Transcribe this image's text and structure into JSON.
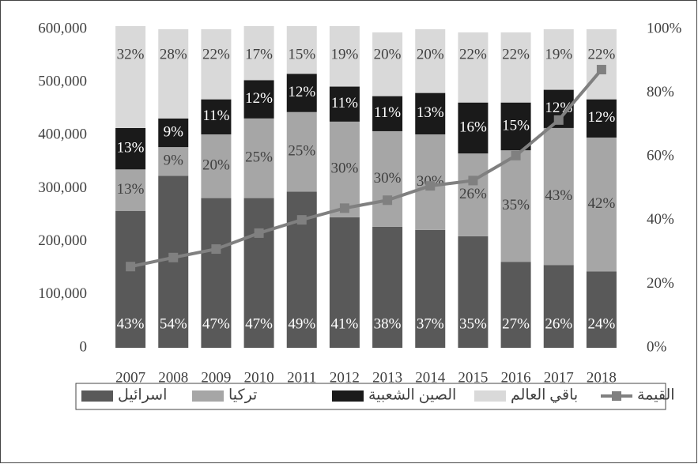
{
  "chart_data": {
    "type": "bar",
    "stacked": true,
    "categories": [
      "2007",
      "2008",
      "2009",
      "2010",
      "2011",
      "2012",
      "2013",
      "2014",
      "2015",
      "2016",
      "2017",
      "2018"
    ],
    "series": [
      {
        "name": "اسرائيل",
        "color": "#595959",
        "axis": "y2",
        "values": [
          43,
          54,
          47,
          47,
          49,
          41,
          38,
          37,
          35,
          27,
          26,
          24
        ],
        "value_labels": [
          "43%",
          "54%",
          "47%",
          "47%",
          "49%",
          "41%",
          "38%",
          "37%",
          "35%",
          "27%",
          "26%",
          "24%"
        ]
      },
      {
        "name": "تركيا",
        "color": "#a6a6a6",
        "axis": "y2",
        "values": [
          13,
          9,
          20,
          25,
          25,
          30,
          30,
          30,
          26,
          35,
          43,
          42
        ],
        "value_labels": [
          "13%",
          "9%",
          "20%",
          "25%",
          "25%",
          "30%",
          "30%",
          "30%",
          "26%",
          "35%",
          "43%",
          "42%"
        ]
      },
      {
        "name": "الصين الشعبية",
        "color": "#1a1a1a",
        "axis": "y2",
        "values": [
          13,
          9,
          11,
          12,
          12,
          11,
          11,
          13,
          16,
          15,
          12,
          12
        ],
        "value_labels": [
          "13%",
          "9%",
          "11%",
          "12%",
          "12%",
          "11%",
          "11%",
          "13%",
          "16%",
          "15%",
          "12%",
          "12%"
        ]
      },
      {
        "name": "باقي العالم",
        "color": "#d9d9d9",
        "axis": "y2",
        "values": [
          32,
          28,
          22,
          17,
          15,
          19,
          20,
          20,
          22,
          22,
          19,
          22
        ],
        "value_labels": [
          "32%",
          "28%",
          "22%",
          "17%",
          "15%",
          "19%",
          "20%",
          "20%",
          "22%",
          "22%",
          "19%",
          "22%"
        ]
      },
      {
        "name": "القيمة",
        "type": "line",
        "color": "#808080",
        "values": [
          153000,
          170000,
          186000,
          216000,
          241000,
          263000,
          278000,
          305000,
          315000,
          362000,
          429000,
          524000
        ]
      }
    ],
    "ylim": [
      0,
      600000
    ],
    "yticks": [
      0,
      {
        "value": 100000,
        "label": "100,000"
      },
      {
        "value": 200000,
        "label": "200,000"
      },
      {
        "value": 300000,
        "label": "300,000"
      },
      {
        "value": 400000,
        "label": "400,000"
      },
      {
        "value": 500000,
        "label": "500,000"
      },
      {
        "value": 600000,
        "label": "600,000"
      }
    ],
    "y2lim": [
      0,
      100
    ],
    "y2ticks": [
      {
        "value": 0,
        "label": "0%"
      },
      {
        "value": 20,
        "label": "20%"
      },
      {
        "value": 40,
        "label": "40%"
      },
      {
        "value": 60,
        "label": "60%"
      },
      {
        "value": 80,
        "label": "80%"
      },
      {
        "value": 100,
        "label": "100%"
      }
    ],
    "legend": "bottom"
  }
}
